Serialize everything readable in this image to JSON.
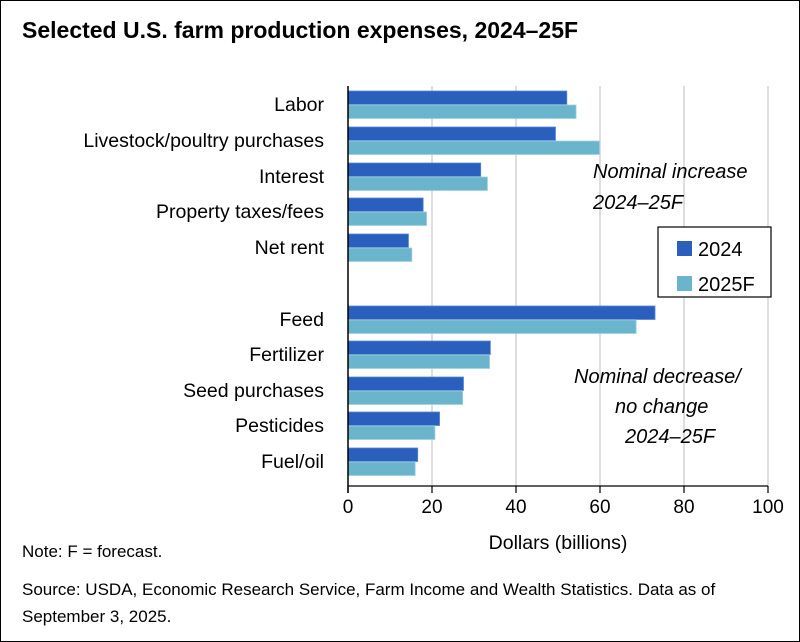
{
  "title": "Selected U.S. farm production expenses, 2024–25F",
  "note": "Note: F = forecast.",
  "source": "Source: USDA, Economic Research Service, Farm Income and Wealth Statistics. Data as of September 3, 2025.",
  "chart_data": {
    "type": "bar",
    "orientation": "horizontal",
    "categories": [
      "Labor",
      "Livestock/poultry purchases",
      "Interest",
      "Property taxes/fees",
      "Net rent",
      "Feed",
      "Fertilizer",
      "Seed purchases",
      "Pesticides",
      "Fuel/oil"
    ],
    "groups": [
      {
        "annotation": [
          "Nominal increase",
          "2024–25F"
        ],
        "categories": [
          "Labor",
          "Livestock/poultry purchases",
          "Interest",
          "Property taxes/fees",
          "Net rent"
        ]
      },
      {
        "annotation": [
          "Nominal decrease/",
          "no change",
          "2024–25F"
        ],
        "categories": [
          "Feed",
          "Fertilizer",
          "Seed purchases",
          "Pesticides",
          "Fuel/oil"
        ]
      }
    ],
    "series": [
      {
        "name": "2024",
        "color": "#2a5fbd",
        "values": [
          52.1,
          49.4,
          31.6,
          17.9,
          14.4,
          73.1,
          33.9,
          27.5,
          21.8,
          16.6
        ]
      },
      {
        "name": "2025F",
        "color": "#6ab4cc",
        "values": [
          54.3,
          59.9,
          33.2,
          18.7,
          15.2,
          68.6,
          33.7,
          27.3,
          20.7,
          16.0
        ]
      }
    ],
    "xlabel": "Dollars (billions)",
    "xlim": [
      0,
      100
    ],
    "xticks": [
      "0",
      "20",
      "40",
      "60",
      "80",
      "100"
    ],
    "grid": true,
    "legend": "right"
  }
}
